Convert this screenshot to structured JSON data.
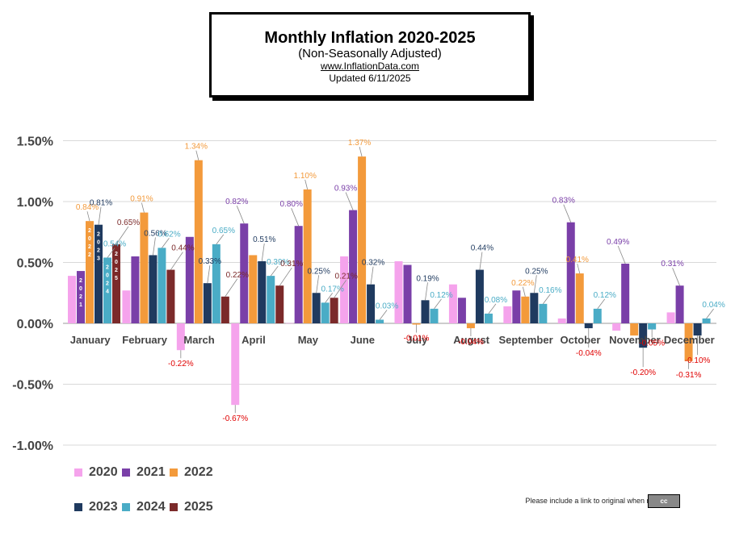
{
  "header": {
    "title": "Monthly Inflation 2020-2025",
    "subtitle": "(Non-Seasonally Adjusted)",
    "website": "www.InflationData.com",
    "updated": "Updated   6/11/2025"
  },
  "footer": {
    "notice": "Please include a link to original when reprinting",
    "license_badge": "cc"
  },
  "chart_data": {
    "type": "bar",
    "ylim": [
      -1.0,
      1.5
    ],
    "yticks": [
      -1.0,
      -0.5,
      0.0,
      0.5,
      1.0,
      1.5
    ],
    "ytick_labels": [
      "-1.00%",
      "-0.50%",
      "0.00%",
      "0.50%",
      "1.00%",
      "1.50%"
    ],
    "grid": true,
    "legend_position": "bottom-left",
    "categories": [
      "January",
      "February",
      "March",
      "April",
      "May",
      "June",
      "July",
      "August",
      "September",
      "October",
      "November",
      "December"
    ],
    "series": [
      {
        "name": "2020",
        "color": "#f5a3ec",
        "values": [
          0.39,
          0.27,
          -0.22,
          -0.67,
          0.002,
          0.55,
          0.51,
          0.32,
          0.14,
          0.04,
          -0.06,
          0.09
        ]
      },
      {
        "name": "2021",
        "color": "#7a3fa8",
        "values": [
          0.43,
          0.55,
          0.71,
          0.82,
          0.8,
          0.93,
          0.48,
          0.21,
          0.27,
          0.83,
          0.49,
          0.31
        ]
      },
      {
        "name": "2022",
        "color": "#f39a3b",
        "values": [
          0.84,
          0.91,
          1.34,
          0.56,
          1.1,
          1.37,
          -0.01,
          -0.04,
          0.22,
          0.41,
          -0.1,
          -0.31
        ]
      },
      {
        "name": "2023",
        "color": "#1f3a5f",
        "values": [
          0.81,
          0.56,
          0.33,
          0.51,
          0.25,
          0.32,
          0.19,
          0.44,
          0.25,
          -0.04,
          -0.2,
          -0.1
        ]
      },
      {
        "name": "2024",
        "color": "#4aacc6",
        "values": [
          0.54,
          0.62,
          0.65,
          0.39,
          0.17,
          0.03,
          0.12,
          0.08,
          0.16,
          0.12,
          -0.05,
          0.04
        ]
      },
      {
        "name": "2025",
        "color": "#7b2a2a",
        "values": [
          0.65,
          0.44,
          0.22,
          0.31,
          0.21,
          null,
          null,
          null,
          null,
          null,
          null,
          null
        ]
      }
    ],
    "data_labels": [
      {
        "text": "0.84%",
        "series": "2022",
        "month": "January",
        "color": "#f39a3b"
      },
      {
        "text": "0.81%",
        "series": "2023",
        "month": "January",
        "color": "#1f3a5f"
      },
      {
        "text": "0.54%",
        "series": "2024",
        "month": "January",
        "color": "#4aacc6"
      },
      {
        "text": "0.65%",
        "series": "2025",
        "month": "January",
        "color": "#7b2a2a"
      },
      {
        "text": "0.91%",
        "series": "2022",
        "month": "February",
        "color": "#f39a3b"
      },
      {
        "text": "0.56%",
        "series": "2023",
        "month": "February",
        "color": "#1f3a5f"
      },
      {
        "text": "0.62%",
        "series": "2024",
        "month": "February",
        "color": "#4aacc6"
      },
      {
        "text": "0.44%",
        "series": "2025",
        "month": "February",
        "color": "#7b2a2a"
      },
      {
        "text": "1.34%",
        "series": "2022",
        "month": "March",
        "color": "#f39a3b"
      },
      {
        "text": "0.33%",
        "series": "2023",
        "month": "March",
        "color": "#1f3a5f"
      },
      {
        "text": "0.65%",
        "series": "2024",
        "month": "March",
        "color": "#4aacc6"
      },
      {
        "text": "0.22%",
        "series": "2025",
        "month": "March",
        "color": "#7b2a2a"
      },
      {
        "text": "-0.22%",
        "series": "2020",
        "month": "March",
        "color": "#e00000"
      },
      {
        "text": "0.82%",
        "series": "2021",
        "month": "April",
        "color": "#7a3fa8"
      },
      {
        "text": "0.51%",
        "series": "2023",
        "month": "April",
        "color": "#1f3a5f"
      },
      {
        "text": "0.39%",
        "series": "2024",
        "month": "April",
        "color": "#4aacc6"
      },
      {
        "text": "0.31%",
        "series": "2025",
        "month": "April",
        "color": "#7b2a2a"
      },
      {
        "text": "-0.67%",
        "series": "2020",
        "month": "April",
        "color": "#e00000"
      },
      {
        "text": "0.80%",
        "series": "2021",
        "month": "May",
        "color": "#7a3fa8"
      },
      {
        "text": "1.10%",
        "series": "2022",
        "month": "May",
        "color": "#f39a3b"
      },
      {
        "text": "0.25%",
        "series": "2023",
        "month": "May",
        "color": "#1f3a5f"
      },
      {
        "text": "0.17%",
        "series": "2024",
        "month": "May",
        "color": "#4aacc6"
      },
      {
        "text": "0.21%",
        "series": "2025",
        "month": "May",
        "color": "#7b2a2a"
      },
      {
        "text": "0.93%",
        "series": "2021",
        "month": "June",
        "color": "#7a3fa8"
      },
      {
        "text": "1.37%",
        "series": "2022",
        "month": "June",
        "color": "#f39a3b"
      },
      {
        "text": "0.32%",
        "series": "2023",
        "month": "June",
        "color": "#1f3a5f"
      },
      {
        "text": "0.03%",
        "series": "2024",
        "month": "June",
        "color": "#4aacc6"
      },
      {
        "text": "0.19%",
        "series": "2023",
        "month": "July",
        "color": "#1f3a5f"
      },
      {
        "text": "0.12%",
        "series": "2024",
        "month": "July",
        "color": "#4aacc6"
      },
      {
        "text": "-0.01%",
        "series": "2022",
        "month": "July",
        "color": "#e00000"
      },
      {
        "text": "0.44%",
        "series": "2023",
        "month": "August",
        "color": "#1f3a5f"
      },
      {
        "text": "0.08%",
        "series": "2024",
        "month": "August",
        "color": "#4aacc6"
      },
      {
        "text": "-0.04%",
        "series": "2022",
        "month": "August",
        "color": "#e00000"
      },
      {
        "text": "0.22%",
        "series": "2022",
        "month": "September",
        "color": "#f39a3b"
      },
      {
        "text": "0.25%",
        "series": "2023",
        "month": "September",
        "color": "#1f3a5f"
      },
      {
        "text": "0.16%",
        "series": "2024",
        "month": "September",
        "color": "#4aacc6"
      },
      {
        "text": "0.83%",
        "series": "2021",
        "month": "October",
        "color": "#7a3fa8"
      },
      {
        "text": "0.41%",
        "series": "2022",
        "month": "October",
        "color": "#f39a3b"
      },
      {
        "text": "0.12%",
        "series": "2024",
        "month": "October",
        "color": "#4aacc6"
      },
      {
        "text": "-0.04%",
        "series": "2023",
        "month": "October",
        "color": "#e00000"
      },
      {
        "text": "0.49%",
        "series": "2021",
        "month": "November",
        "color": "#7a3fa8"
      },
      {
        "text": "-0.20%",
        "series": "2023",
        "month": "November",
        "color": "#e00000"
      },
      {
        "text": "-0.05%",
        "series": "2024",
        "month": "November",
        "color": "#e00000"
      },
      {
        "text": "0.31%",
        "series": "2021",
        "month": "December",
        "color": "#7a3fa8"
      },
      {
        "text": "0.04%",
        "series": "2024",
        "month": "December",
        "color": "#4aacc6"
      },
      {
        "text": "-0.31%",
        "series": "2022",
        "month": "December",
        "color": "#e00000"
      },
      {
        "text": "-0.10%",
        "series": "2023",
        "month": "December",
        "color": "#e00000"
      }
    ],
    "january_bar_labels": [
      "2021",
      "2022",
      "2023",
      "2024",
      "2025"
    ]
  }
}
